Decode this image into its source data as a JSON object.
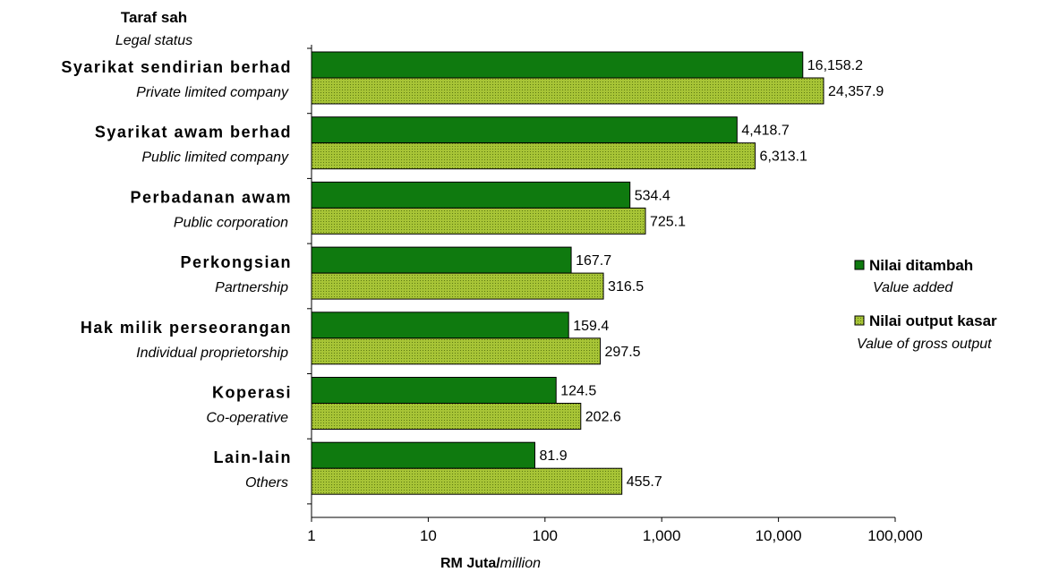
{
  "header": {
    "title_malay": "Taraf sah",
    "title_english": "Legal status"
  },
  "colors": {
    "value_added": "#0f7a0f",
    "gross_output": "#a7c436",
    "gross_output_dot": "#5d7a12"
  },
  "chart_data": {
    "type": "bar",
    "orientation": "horizontal",
    "x_scale": "log",
    "xlim": [
      1,
      100000
    ],
    "x_ticks": [
      1,
      10,
      100,
      1000,
      10000,
      100000
    ],
    "x_tick_labels": [
      "1",
      "10",
      "100",
      "1,000",
      "10,000",
      "100,000"
    ],
    "xlabel_bold": "RM Juta/",
    "xlabel_italic": "million",
    "categories": [
      {
        "malay": "Syarikat sendirian berhad",
        "english": "Private limited company"
      },
      {
        "malay": "Syarikat awam berhad",
        "english": "Public limited company"
      },
      {
        "malay": "Perbadanan awam",
        "english": "Public corporation"
      },
      {
        "malay": "Perkongsian",
        "english": "Partnership"
      },
      {
        "malay": "Hak milik perseorangan",
        "english": "Individual proprietorship"
      },
      {
        "malay": "Koperasi",
        "english": "Co-operative"
      },
      {
        "malay": "Lain-lain",
        "english": "Others"
      }
    ],
    "series": [
      {
        "name": "Nilai ditambah",
        "name_english": "Value added",
        "values": [
          16158.2,
          4418.7,
          534.4,
          167.7,
          159.4,
          124.5,
          81.9
        ],
        "labels": [
          "16,158.2",
          "4,418.7",
          "534.4",
          "167.7",
          "159.4",
          "124.5",
          "81.9"
        ]
      },
      {
        "name": "Nilai output kasar",
        "name_english": "Value of gross output",
        "values": [
          24357.9,
          6313.1,
          725.1,
          316.5,
          297.5,
          202.6,
          455.7
        ],
        "labels": [
          "24,357.9",
          "6,313.1",
          "725.1",
          "316.5",
          "297.5",
          "202.6",
          "455.7"
        ]
      }
    ],
    "legend_position": "right",
    "grid": false
  }
}
